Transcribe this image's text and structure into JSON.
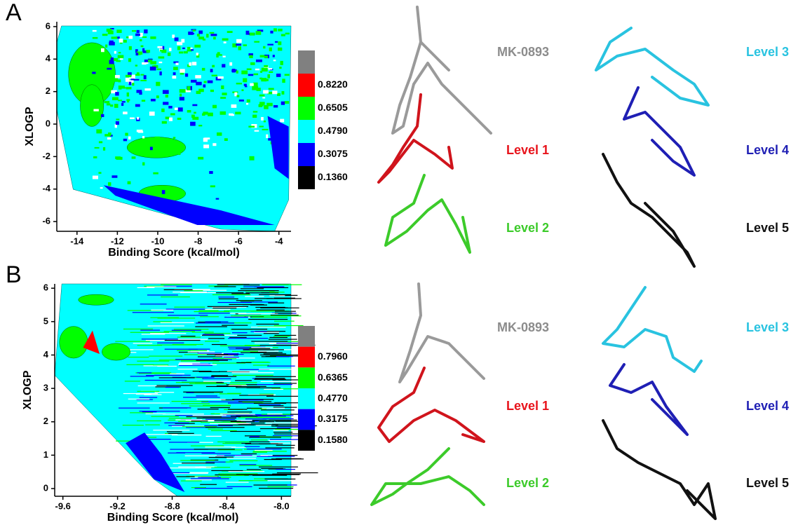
{
  "chart_data": [
    {
      "type": "contour",
      "panel_label": "A",
      "xlabel": "Binding Score (kcal/mol)",
      "ylabel": "XLOGP",
      "xlim": [
        -15,
        -3.4
      ],
      "xticks": [
        -14,
        -12,
        -10,
        -8,
        -6,
        -4
      ],
      "ylim": [
        -6.6,
        6.3
      ],
      "yticks": [
        -6,
        -4,
        -2,
        0,
        2,
        4,
        6
      ],
      "colorbar": {
        "colors": [
          "#808080",
          "#ff0000",
          "#00ff00",
          "#00ffff",
          "#0000ff",
          "#000000"
        ],
        "levels": [
          {
            "value": 0.822,
            "label": "0.8220"
          },
          {
            "value": 0.6505,
            "label": "0.6505"
          },
          {
            "value": 0.479,
            "label": "0.4790"
          },
          {
            "value": 0.3075,
            "label": "0.3075"
          },
          {
            "value": 0.136,
            "label": "0.1360"
          }
        ]
      },
      "molecules": [
        {
          "name": "MK-0893",
          "color": "#8c8c8c"
        },
        {
          "name": "Level 1",
          "color": "#e8141c"
        },
        {
          "name": "Level 2",
          "color": "#3ccb2a"
        },
        {
          "name": "Level 3",
          "color": "#29c3e0"
        },
        {
          "name": "Level 4",
          "color": "#1f1fb4"
        },
        {
          "name": "Level 5",
          "color": "#111111"
        }
      ]
    },
    {
      "type": "contour",
      "panel_label": "B",
      "xlabel": "Binding Score (kcal/mol)",
      "ylabel": "XLOGP",
      "xlim": [
        -9.66,
        -7.93
      ],
      "xticks": [
        -9.6,
        -9.2,
        -8.8,
        -8.4,
        {
          "value": -8,
          "label": "-8.0"
        }
      ],
      "ylim": [
        -0.23,
        6.13
      ],
      "yticks": [
        0,
        1,
        2,
        3,
        4,
        5,
        6
      ],
      "colorbar": {
        "colors": [
          "#808080",
          "#ff0000",
          "#00ff00",
          "#00ffff",
          "#0000ff",
          "#000000"
        ],
        "levels": [
          {
            "value": 0.796,
            "label": "0.7960"
          },
          {
            "value": 0.6365,
            "label": "0.6365"
          },
          {
            "value": 0.477,
            "label": "0.4770"
          },
          {
            "value": 0.3175,
            "label": "0.3175"
          },
          {
            "value": 0.158,
            "label": "0.1580"
          }
        ]
      },
      "molecules": [
        {
          "name": "MK-0893",
          "color": "#8c8c8c"
        },
        {
          "name": "Level 1",
          "color": "#e8141c"
        },
        {
          "name": "Level 2",
          "color": "#3ccb2a"
        },
        {
          "name": "Level 3",
          "color": "#29c3e0"
        },
        {
          "name": "Level 4",
          "color": "#1f1fb4"
        },
        {
          "name": "Level 5",
          "color": "#111111"
        }
      ]
    }
  ]
}
